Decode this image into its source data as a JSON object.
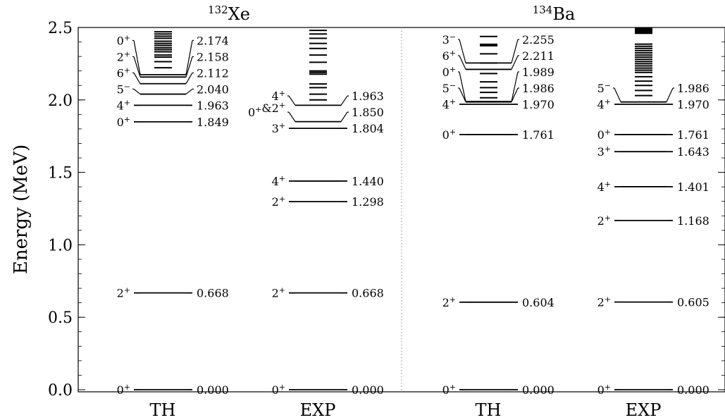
{
  "chart_data": {
    "type": "level-scheme",
    "ylabel": "Energy (MeV)",
    "ylim": [
      0.0,
      2.5
    ],
    "yticks": [
      {
        "value": 0.0,
        "label": "0.0"
      },
      {
        "value": 0.5,
        "label": "0.5"
      },
      {
        "value": 1.0,
        "label": "1.0"
      },
      {
        "value": 1.5,
        "label": "1.5"
      },
      {
        "value": 2.0,
        "label": "2.0"
      },
      {
        "value": 2.5,
        "label": "2.5"
      }
    ],
    "minor_tick_step": 0.1,
    "nuclei": [
      {
        "label": "Xe",
        "mass": "132"
      },
      {
        "label": "Ba",
        "mass": "134"
      }
    ],
    "columns": [
      {
        "label": "TH",
        "levels": [
          {
            "energy": 0.0,
            "label": "0.000",
            "spin": "0",
            "parity": "+"
          },
          {
            "energy": 0.668,
            "label": "0.668",
            "spin": "2",
            "parity": "+"
          },
          {
            "energy": 1.849,
            "label": "1.849",
            "spin": "0",
            "parity": "+"
          },
          {
            "energy": 1.963,
            "label": "1.963",
            "spin": "4",
            "parity": "+"
          },
          {
            "energy": 2.04,
            "label": "2.040",
            "spin": "5",
            "parity": "−"
          },
          {
            "energy": 2.112,
            "label": "2.112",
            "spin": "6",
            "parity": "+"
          },
          {
            "energy": 2.158,
            "label": "2.158",
            "spin": "2",
            "parity": "+"
          },
          {
            "energy": 2.174,
            "label": "2.174",
            "spin": "0",
            "parity": "+"
          }
        ],
        "dense_levels": [
          2.222,
          2.264,
          2.296,
          2.31,
          2.332,
          2.347,
          2.36,
          2.376,
          2.39,
          2.405,
          2.425,
          2.44,
          2.455,
          2.47
        ]
      },
      {
        "label": "EXP",
        "levels": [
          {
            "energy": 0.0,
            "label": "0.000",
            "spin": "0",
            "parity": "+"
          },
          {
            "energy": 0.668,
            "label": "0.668",
            "spin": "2",
            "parity": "+"
          },
          {
            "energy": 1.298,
            "label": "1.298",
            "spin": "2",
            "parity": "+"
          },
          {
            "energy": 1.44,
            "label": "1.440",
            "spin": "4",
            "parity": "+"
          },
          {
            "energy": 1.804,
            "label": "1.804",
            "spin": "3",
            "parity": "+"
          },
          {
            "energy": 1.85,
            "label": "1.850",
            "spin": "0",
            "parity": "+",
            "spin2": "2",
            "parity2": "+"
          },
          {
            "energy": 1.963,
            "label": "1.963",
            "spin": "4",
            "parity": "+"
          }
        ],
        "dense_levels": [
          2.0,
          2.04,
          2.085,
          2.11,
          2.178,
          2.19,
          2.2,
          2.26,
          2.31,
          2.355,
          2.39,
          2.425,
          2.455,
          2.48
        ]
      },
      {
        "label": "TH",
        "levels": [
          {
            "energy": 0.0,
            "label": "0.000",
            "spin": "0",
            "parity": "+"
          },
          {
            "energy": 0.604,
            "label": "0.604",
            "spin": "2",
            "parity": "+"
          },
          {
            "energy": 1.761,
            "label": "1.761",
            "spin": "0",
            "parity": "+"
          },
          {
            "energy": 1.97,
            "label": "1.970",
            "spin": "4",
            "parity": "+"
          },
          {
            "energy": 1.986,
            "label": "1.986",
            "spin": "5",
            "parity": "−"
          },
          {
            "energy": 1.989,
            "label": "1.989",
            "spin": "0",
            "parity": "+"
          },
          {
            "energy": 2.211,
            "label": "2.211",
            "spin": "6",
            "parity": "+"
          },
          {
            "energy": 2.255,
            "label": "2.255",
            "spin": "3",
            "parity": "−"
          }
        ],
        "dense_levels": [
          2.015,
          2.052,
          2.085,
          2.125,
          2.182,
          2.255,
          2.318,
          2.374,
          2.384,
          2.438
        ]
      },
      {
        "label": "EXP",
        "levels": [
          {
            "energy": 0.0,
            "label": "0.000",
            "spin": "0",
            "parity": "+"
          },
          {
            "energy": 0.605,
            "label": "0.605",
            "spin": "2",
            "parity": "+"
          },
          {
            "energy": 1.168,
            "label": "1.168",
            "spin": "2",
            "parity": "+"
          },
          {
            "energy": 1.401,
            "label": "1.401",
            "spin": "4",
            "parity": "+"
          },
          {
            "energy": 1.643,
            "label": "1.643",
            "spin": "3",
            "parity": "+"
          },
          {
            "energy": 1.761,
            "label": "1.761",
            "spin": "0",
            "parity": "+"
          },
          {
            "energy": 1.97,
            "label": "1.970",
            "spin": "4",
            "parity": "+"
          },
          {
            "energy": 1.986,
            "label": "1.986",
            "spin": "5",
            "parity": "−"
          }
        ],
        "dense_levels": [
          2.03,
          2.065,
          2.1,
          2.13,
          2.16,
          2.19,
          2.205,
          2.22,
          2.235,
          2.25,
          2.265,
          2.28,
          2.295,
          2.31,
          2.325,
          2.34,
          2.355,
          2.37,
          2.385,
          2.46,
          2.465,
          2.47,
          2.475,
          2.48,
          2.485,
          2.49,
          2.495
        ]
      }
    ],
    "colors": {
      "lines": "#000000",
      "separator": "#888888",
      "background": "#ffffff"
    }
  }
}
